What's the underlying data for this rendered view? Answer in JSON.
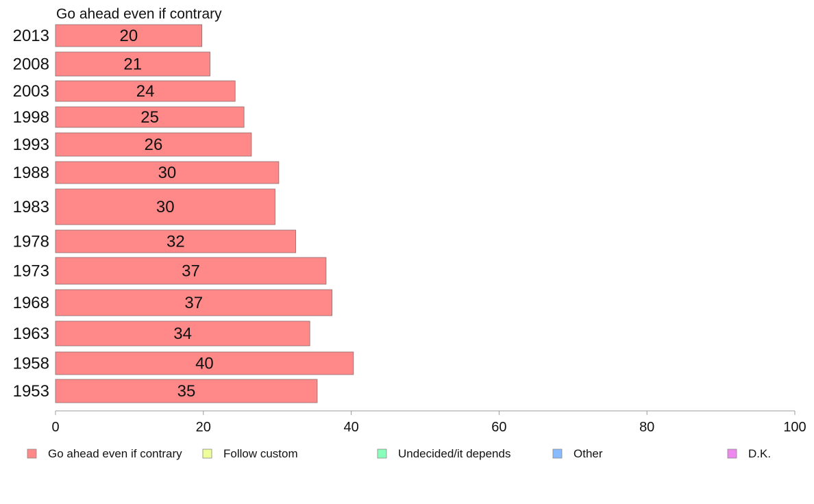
{
  "chart_data": {
    "type": "bar",
    "orientation": "horizontal",
    "panel_title": "Go ahead even if contrary",
    "categories": [
      "2013",
      "2008",
      "2003",
      "1998",
      "1993",
      "1988",
      "1983",
      "1978",
      "1973",
      "1968",
      "1963",
      "1958",
      "1953"
    ],
    "series": [
      {
        "name": "Go ahead even if contrary",
        "values": [
          19.8,
          20.9,
          24.3,
          25.5,
          26.5,
          30.2,
          29.7,
          32.5,
          36.6,
          37.4,
          34.4,
          40.3,
          35.4
        ],
        "data_labels": [
          "20",
          "21",
          "24",
          "25",
          "26",
          "30",
          "30",
          "32",
          "37",
          "37",
          "34",
          "40",
          "35"
        ],
        "color": "#ff8888"
      }
    ],
    "xlim": [
      0,
      100
    ],
    "xticks": [
      "0",
      "20",
      "40",
      "60",
      "80",
      "100"
    ],
    "xlabel": "",
    "ylabel": "",
    "grid": false,
    "legend_position": "bottom",
    "legend": [
      {
        "label": "Go ahead even if contrary",
        "color": "#ff8888"
      },
      {
        "label": "Follow custom",
        "color": "#eeff99"
      },
      {
        "label": "Undecided/it depends",
        "color": "#88ffbb"
      },
      {
        "label": "Other",
        "color": "#88bbff"
      },
      {
        "label": "D.K.",
        "color": "#ee88ee"
      }
    ]
  }
}
